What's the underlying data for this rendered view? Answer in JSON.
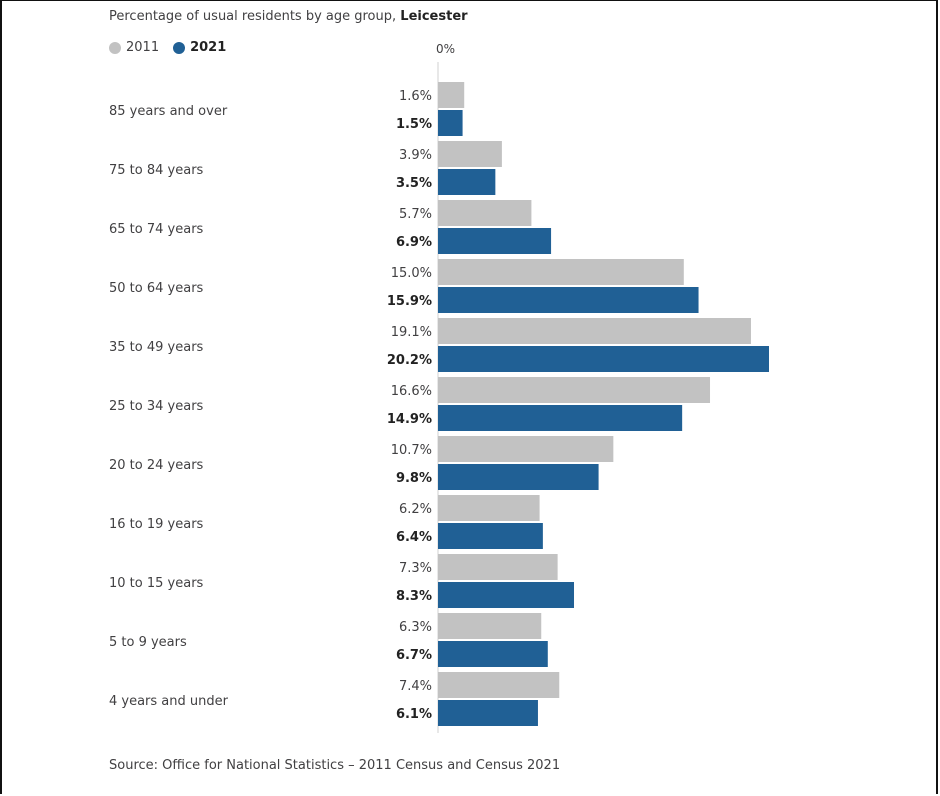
{
  "title": {
    "text": "Percentage of usual residents by age group, ",
    "place": "Leicester"
  },
  "legend": [
    {
      "label": "2011",
      "color": "#c2c2c2"
    },
    {
      "label": "2021",
      "color": "#206095"
    }
  ],
  "source": "Source: Office for National Statistics – 2011 Census and Census 2021",
  "chart_data": {
    "type": "bar",
    "orientation": "horizontal",
    "categories": [
      "85 years and over",
      "75 to 84 years",
      "65 to 74 years",
      "50 to 64 years",
      "35 to 49 years",
      "25 to 34 years",
      "20 to 24 years",
      "16 to 19 years",
      "10 to 15 years",
      "5 to 9 years",
      "4 years and under"
    ],
    "series": [
      {
        "name": "2011",
        "color": "#c2c2c2",
        "values": [
          1.6,
          3.9,
          5.7,
          15.0,
          19.1,
          16.6,
          10.7,
          6.2,
          7.3,
          6.3,
          7.4
        ],
        "labels": [
          "1.6%",
          "3.9%",
          "5.7%",
          "15.0%",
          "19.1%",
          "16.6%",
          "10.7%",
          "6.2%",
          "7.3%",
          "6.3%",
          "7.4%"
        ]
      },
      {
        "name": "2021",
        "color": "#206095",
        "values": [
          1.5,
          3.5,
          6.9,
          15.9,
          20.2,
          14.9,
          9.8,
          6.4,
          8.3,
          6.7,
          6.1
        ],
        "labels": [
          "1.5%",
          "3.5%",
          "6.9%",
          "15.9%",
          "20.2%",
          "14.9%",
          "9.8%",
          "6.4%",
          "8.3%",
          "6.7%",
          "6.1%"
        ]
      }
    ],
    "axis_tick_label": "0%",
    "xlim": [
      0,
      20.2
    ],
    "grid": false,
    "legend_position": "top-left"
  }
}
